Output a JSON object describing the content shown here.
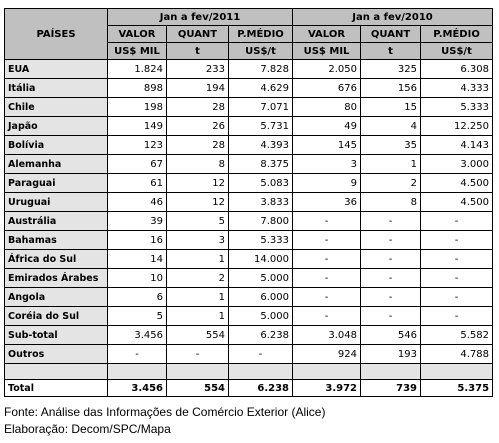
{
  "table": {
    "header": {
      "countries": "PAÍSES",
      "periods": [
        "Jan a fev/2011",
        "Jan a fev/2010"
      ],
      "columns": [
        "VALOR",
        "QUANT",
        "P.MÉDIO",
        "VALOR",
        "QUANT",
        "P.MÉDIO"
      ],
      "units": [
        "US$ MIL",
        "t",
        "US$/t",
        "US$ MIL",
        "t",
        "US$/t"
      ]
    },
    "rows": [
      [
        "EUA",
        "1.824",
        "233",
        "7.828",
        "2.050",
        "325",
        "6.308"
      ],
      [
        "Itália",
        "898",
        "194",
        "4.629",
        "676",
        "156",
        "4.333"
      ],
      [
        "Chile",
        "198",
        "28",
        "7.071",
        "80",
        "15",
        "5.333"
      ],
      [
        "Japão",
        "149",
        "26",
        "5.731",
        "49",
        "4",
        "12.250"
      ],
      [
        "Bolívia",
        "123",
        "28",
        "4.393",
        "145",
        "35",
        "4.143"
      ],
      [
        "Alemanha",
        "67",
        "8",
        "8.375",
        "3",
        "1",
        "3.000"
      ],
      [
        "Paraguai",
        "61",
        "12",
        "5.083",
        "9",
        "2",
        "4.500"
      ],
      [
        "Uruguai",
        "46",
        "12",
        "3.833",
        "36",
        "8",
        "4.500"
      ],
      [
        "Austrália",
        "39",
        "5",
        "7.800",
        "-",
        "-",
        "-"
      ],
      [
        "Bahamas",
        "16",
        "3",
        "5.333",
        "-",
        "-",
        "-"
      ],
      [
        "África do Sul",
        "14",
        "1",
        "14.000",
        "-",
        "-",
        "-"
      ],
      [
        "Emirados Árabes",
        "10",
        "2",
        "5.000",
        "-",
        "-",
        "-"
      ],
      [
        "Angola",
        "6",
        "1",
        "6.000",
        "-",
        "-",
        "-"
      ],
      [
        "Coréia do Sul",
        "5",
        "1",
        "5.000",
        "-",
        "-",
        "-"
      ],
      [
        "Sub-total",
        "3.456",
        "554",
        "6.238",
        "3.048",
        "546",
        "5.582"
      ],
      [
        "Outros",
        "-",
        "-",
        "-",
        "924",
        "193",
        "4.788"
      ]
    ],
    "total": [
      "Total",
      "3.456",
      "554",
      "6.238",
      "3.972",
      "739",
      "5.375"
    ]
  },
  "footer": {
    "source": "Fonte: Análise das Informações de Comércio Exterior (Alice)",
    "credit": "Elaboração: Decom/SPC/Mapa"
  }
}
